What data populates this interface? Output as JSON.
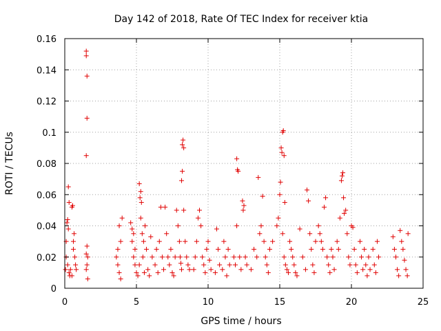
{
  "chart_data": {
    "type": "scatter",
    "title": "Day 142 of 2018, Rate Of TEC Index for receiver ktia",
    "xlabel": "GPS time / hours",
    "ylabel": "ROTI / TECUs",
    "xlim": [
      0,
      25
    ],
    "ylim": [
      0,
      0.16
    ],
    "xticks": [
      0,
      5,
      10,
      15,
      20,
      25
    ],
    "yticks": [
      0,
      0.02,
      0.04,
      0.06,
      0.08,
      0.1,
      0.12,
      0.14,
      0.16
    ],
    "xtick_labels": [
      "0",
      "5",
      "10",
      "15",
      "20",
      "25"
    ],
    "ytick_labels": [
      "0",
      "0.02",
      "0.04",
      "0.06",
      "0.08",
      "0.1",
      "0.12",
      "0.14",
      "0.16"
    ],
    "grid": true,
    "marker": "+",
    "color": "#e00000",
    "series": [
      {
        "name": "ROTI",
        "points": [
          [
            0.05,
            0.012
          ],
          [
            0.1,
            0.02
          ],
          [
            0.15,
            0.042
          ],
          [
            0.2,
            0.044
          ],
          [
            0.25,
            0.065
          ],
          [
            0.3,
            0.055
          ],
          [
            0.2,
            0.015
          ],
          [
            0.3,
            0.01
          ],
          [
            0.35,
            0.008
          ],
          [
            0.1,
            0.03
          ],
          [
            0.25,
            0.038
          ],
          [
            0.4,
            0.012
          ],
          [
            0.5,
            0.052
          ],
          [
            0.55,
            0.053
          ],
          [
            0.6,
            0.025
          ],
          [
            0.65,
            0.035
          ],
          [
            0.7,
            0.02
          ],
          [
            0.75,
            0.015
          ],
          [
            0.8,
            0.012
          ],
          [
            0.5,
            0.008
          ],
          [
            0.6,
            0.03
          ],
          [
            1.5,
            0.152
          ],
          [
            1.5,
            0.149
          ],
          [
            1.55,
            0.136
          ],
          [
            1.55,
            0.109
          ],
          [
            1.5,
            0.085
          ],
          [
            1.5,
            0.022
          ],
          [
            1.6,
            0.02
          ],
          [
            1.55,
            0.015
          ],
          [
            1.5,
            0.012
          ],
          [
            1.6,
            0.006
          ],
          [
            1.55,
            0.027
          ],
          [
            3.6,
            0.02
          ],
          [
            3.7,
            0.015
          ],
          [
            3.8,
            0.01
          ],
          [
            3.9,
            0.03
          ],
          [
            4.0,
            0.045
          ],
          [
            3.8,
            0.04
          ],
          [
            3.9,
            0.006
          ],
          [
            3.7,
            0.025
          ],
          [
            4.6,
            0.042
          ],
          [
            4.7,
            0.03
          ],
          [
            4.8,
            0.02
          ],
          [
            4.9,
            0.015
          ],
          [
            5.0,
            0.01
          ],
          [
            5.1,
            0.008
          ],
          [
            4.7,
            0.038
          ],
          [
            4.8,
            0.035
          ],
          [
            4.9,
            0.025
          ],
          [
            5.2,
            0.067
          ],
          [
            5.3,
            0.062
          ],
          [
            5.25,
            0.058
          ],
          [
            5.35,
            0.055
          ],
          [
            5.3,
            0.045
          ],
          [
            5.4,
            0.035
          ],
          [
            5.5,
            0.03
          ],
          [
            5.45,
            0.02
          ],
          [
            5.2,
            0.015
          ],
          [
            5.55,
            0.01
          ],
          [
            5.6,
            0.04
          ],
          [
            5.7,
            0.025
          ],
          [
            5.8,
            0.012
          ],
          [
            5.9,
            0.008
          ],
          [
            6.0,
            0.033
          ],
          [
            6.1,
            0.02
          ],
          [
            6.3,
            0.015
          ],
          [
            6.4,
            0.025
          ],
          [
            6.5,
            0.01
          ],
          [
            6.6,
            0.03
          ],
          [
            6.7,
            0.052
          ],
          [
            6.8,
            0.02
          ],
          [
            6.9,
            0.012
          ],
          [
            7.0,
            0.052
          ],
          [
            7.1,
            0.035
          ],
          [
            7.2,
            0.02
          ],
          [
            7.3,
            0.015
          ],
          [
            7.4,
            0.025
          ],
          [
            7.5,
            0.01
          ],
          [
            7.6,
            0.008
          ],
          [
            7.7,
            0.02
          ],
          [
            7.8,
            0.05
          ],
          [
            7.9,
            0.04
          ],
          [
            8.0,
            0.03
          ],
          [
            8.05,
            0.02
          ],
          [
            8.1,
            0.016
          ],
          [
            8.15,
            0.012
          ],
          [
            8.2,
            0.092
          ],
          [
            8.25,
            0.095
          ],
          [
            8.3,
            0.09
          ],
          [
            8.2,
            0.075
          ],
          [
            8.15,
            0.069
          ],
          [
            8.3,
            0.05
          ],
          [
            8.4,
            0.03
          ],
          [
            8.5,
            0.02
          ],
          [
            8.6,
            0.015
          ],
          [
            8.7,
            0.012
          ],
          [
            9.0,
            0.012
          ],
          [
            9.1,
            0.02
          ],
          [
            9.2,
            0.03
          ],
          [
            9.3,
            0.045
          ],
          [
            9.4,
            0.05
          ],
          [
            9.5,
            0.04
          ],
          [
            9.6,
            0.02
          ],
          [
            9.7,
            0.015
          ],
          [
            9.8,
            0.01
          ],
          [
            9.9,
            0.025
          ],
          [
            10.0,
            0.03
          ],
          [
            10.1,
            0.018
          ],
          [
            10.2,
            0.012
          ],
          [
            10.5,
            0.01
          ],
          [
            10.6,
            0.038
          ],
          [
            10.7,
            0.025
          ],
          [
            10.8,
            0.015
          ],
          [
            11.0,
            0.012
          ],
          [
            11.1,
            0.03
          ],
          [
            11.2,
            0.02
          ],
          [
            11.3,
            0.008
          ],
          [
            11.4,
            0.025
          ],
          [
            11.5,
            0.015
          ],
          [
            11.8,
            0.02
          ],
          [
            11.9,
            0.015
          ],
          [
            12.0,
            0.083
          ],
          [
            12.05,
            0.076
          ],
          [
            12.1,
            0.075
          ],
          [
            12.0,
            0.04
          ],
          [
            12.2,
            0.02
          ],
          [
            12.3,
            0.012
          ],
          [
            12.4,
            0.056
          ],
          [
            12.5,
            0.053
          ],
          [
            12.45,
            0.05
          ],
          [
            12.6,
            0.02
          ],
          [
            12.7,
            0.015
          ],
          [
            13.0,
            0.012
          ],
          [
            13.2,
            0.025
          ],
          [
            13.4,
            0.02
          ],
          [
            13.5,
            0.071
          ],
          [
            13.6,
            0.035
          ],
          [
            13.7,
            0.04
          ],
          [
            13.8,
            0.059
          ],
          [
            13.9,
            0.03
          ],
          [
            14.0,
            0.02
          ],
          [
            14.1,
            0.015
          ],
          [
            14.2,
            0.01
          ],
          [
            14.3,
            0.025
          ],
          [
            14.5,
            0.03
          ],
          [
            14.8,
            0.04
          ],
          [
            14.9,
            0.045
          ],
          [
            15.0,
            0.06
          ],
          [
            15.05,
            0.068
          ],
          [
            15.1,
            0.09
          ],
          [
            15.15,
            0.087
          ],
          [
            15.2,
            0.1
          ],
          [
            15.25,
            0.101
          ],
          [
            15.3,
            0.085
          ],
          [
            15.35,
            0.055
          ],
          [
            15.2,
            0.035
          ],
          [
            15.3,
            0.02
          ],
          [
            15.4,
            0.015
          ],
          [
            15.5,
            0.012
          ],
          [
            15.6,
            0.01
          ],
          [
            15.7,
            0.03
          ],
          [
            15.8,
            0.025
          ],
          [
            15.9,
            0.02
          ],
          [
            16.0,
            0.015
          ],
          [
            16.1,
            0.01
          ],
          [
            16.2,
            0.008
          ],
          [
            16.4,
            0.038
          ],
          [
            16.6,
            0.02
          ],
          [
            16.8,
            0.012
          ],
          [
            16.9,
            0.063
          ],
          [
            17.0,
            0.056
          ],
          [
            17.1,
            0.035
          ],
          [
            17.2,
            0.025
          ],
          [
            17.3,
            0.015
          ],
          [
            17.4,
            0.01
          ],
          [
            17.5,
            0.03
          ],
          [
            17.7,
            0.04
          ],
          [
            17.8,
            0.035
          ],
          [
            17.9,
            0.03
          ],
          [
            18.0,
            0.025
          ],
          [
            18.1,
            0.052
          ],
          [
            18.2,
            0.058
          ],
          [
            18.3,
            0.02
          ],
          [
            18.4,
            0.015
          ],
          [
            18.5,
            0.01
          ],
          [
            18.6,
            0.025
          ],
          [
            18.7,
            0.02
          ],
          [
            18.8,
            0.012
          ],
          [
            19.0,
            0.03
          ],
          [
            19.1,
            0.025
          ],
          [
            19.2,
            0.045
          ],
          [
            19.3,
            0.069
          ],
          [
            19.35,
            0.072
          ],
          [
            19.4,
            0.074
          ],
          [
            19.45,
            0.058
          ],
          [
            19.5,
            0.048
          ],
          [
            19.6,
            0.05
          ],
          [
            19.7,
            0.035
          ],
          [
            19.8,
            0.02
          ],
          [
            19.9,
            0.015
          ],
          [
            20.0,
            0.04
          ],
          [
            20.1,
            0.039
          ],
          [
            20.2,
            0.025
          ],
          [
            20.3,
            0.015
          ],
          [
            20.4,
            0.01
          ],
          [
            20.6,
            0.03
          ],
          [
            20.7,
            0.02
          ],
          [
            20.8,
            0.012
          ],
          [
            20.9,
            0.025
          ],
          [
            21.0,
            0.015
          ],
          [
            21.1,
            0.008
          ],
          [
            21.2,
            0.02
          ],
          [
            21.3,
            0.012
          ],
          [
            21.5,
            0.025
          ],
          [
            21.6,
            0.015
          ],
          [
            21.7,
            0.01
          ],
          [
            21.8,
            0.03
          ],
          [
            21.9,
            0.02
          ],
          [
            22.9,
            0.033
          ],
          [
            23.0,
            0.025
          ],
          [
            23.1,
            0.02
          ],
          [
            23.2,
            0.012
          ],
          [
            23.3,
            0.008
          ],
          [
            23.4,
            0.037
          ],
          [
            23.5,
            0.03
          ],
          [
            23.6,
            0.025
          ],
          [
            23.7,
            0.018
          ],
          [
            23.8,
            0.012
          ],
          [
            23.9,
            0.008
          ],
          [
            23.95,
            0.035
          ]
        ]
      }
    ]
  }
}
